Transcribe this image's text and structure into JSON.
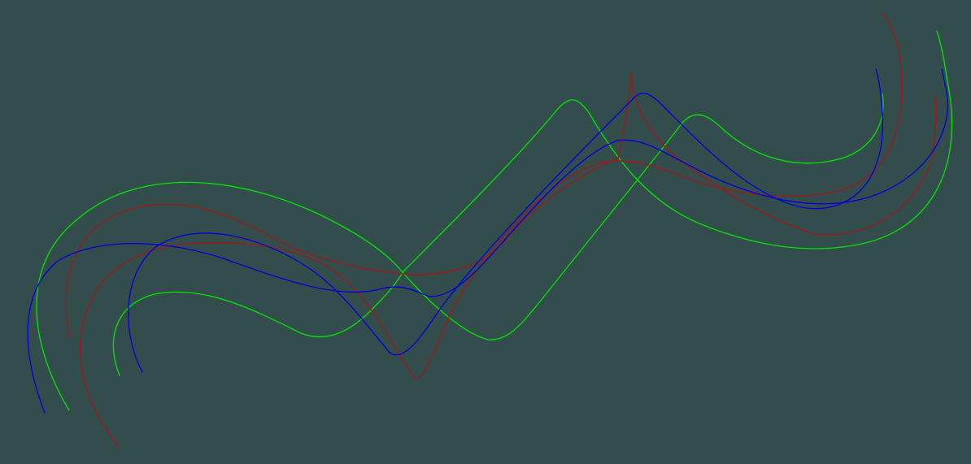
{
  "background_color": "#334d4d",
  "curve_colors": {
    "red": "#a01818",
    "green": "#00e600",
    "blue": "#0000d8"
  }
}
